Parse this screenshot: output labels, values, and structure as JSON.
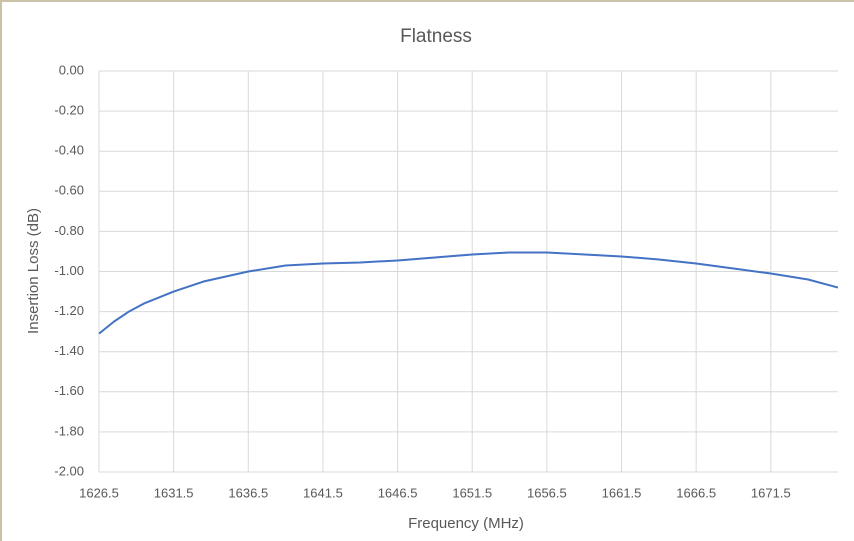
{
  "chart_data": {
    "type": "line",
    "title": "Flatness",
    "x_label": "Frequency (MHz)",
    "y_label": "Insertion Loss (dB)",
    "x": [
      1626.5,
      1627.5,
      1628.5,
      1629.5,
      1630.5,
      1631.5,
      1633.5,
      1636.5,
      1639,
      1641.5,
      1644,
      1646.5,
      1651.5,
      1654,
      1656.5,
      1661.5,
      1664,
      1666.5,
      1669,
      1671.5,
      1674,
      1676
    ],
    "values": [
      -1.31,
      -1.25,
      -1.2,
      -1.16,
      -1.13,
      -1.1,
      -1.05,
      -1.0,
      -0.97,
      -0.96,
      -0.955,
      -0.945,
      -0.915,
      -0.905,
      -0.905,
      -0.925,
      -0.94,
      -0.96,
      -0.985,
      -1.01,
      -1.04,
      -1.08
    ],
    "color": "#4472c4",
    "xlim": [
      1626.5,
      1676
    ],
    "xticks": [
      1626.5,
      1631.5,
      1636.5,
      1641.5,
      1646.5,
      1651.5,
      1656.5,
      1661.5,
      1666.5,
      1671.5
    ],
    "ylim": [
      -2,
      0
    ],
    "yticks": [
      {
        "value": -2,
        "label": "-2.00"
      },
      {
        "value": -1.8,
        "label": "-1.80"
      },
      {
        "value": -1.6,
        "label": "-1.60"
      },
      {
        "value": -1.4,
        "label": "-1.40"
      },
      {
        "value": -1.2,
        "label": "-1.20"
      },
      {
        "value": -1,
        "label": "-1.00"
      },
      {
        "value": -0.8,
        "label": "-0.80"
      },
      {
        "value": -0.6,
        "label": "-0.60"
      },
      {
        "value": -0.4,
        "label": "-0.40"
      },
      {
        "value": -0.2,
        "label": "-0.20"
      },
      {
        "value": 0,
        "label": "0.00"
      }
    ],
    "grid": true
  }
}
